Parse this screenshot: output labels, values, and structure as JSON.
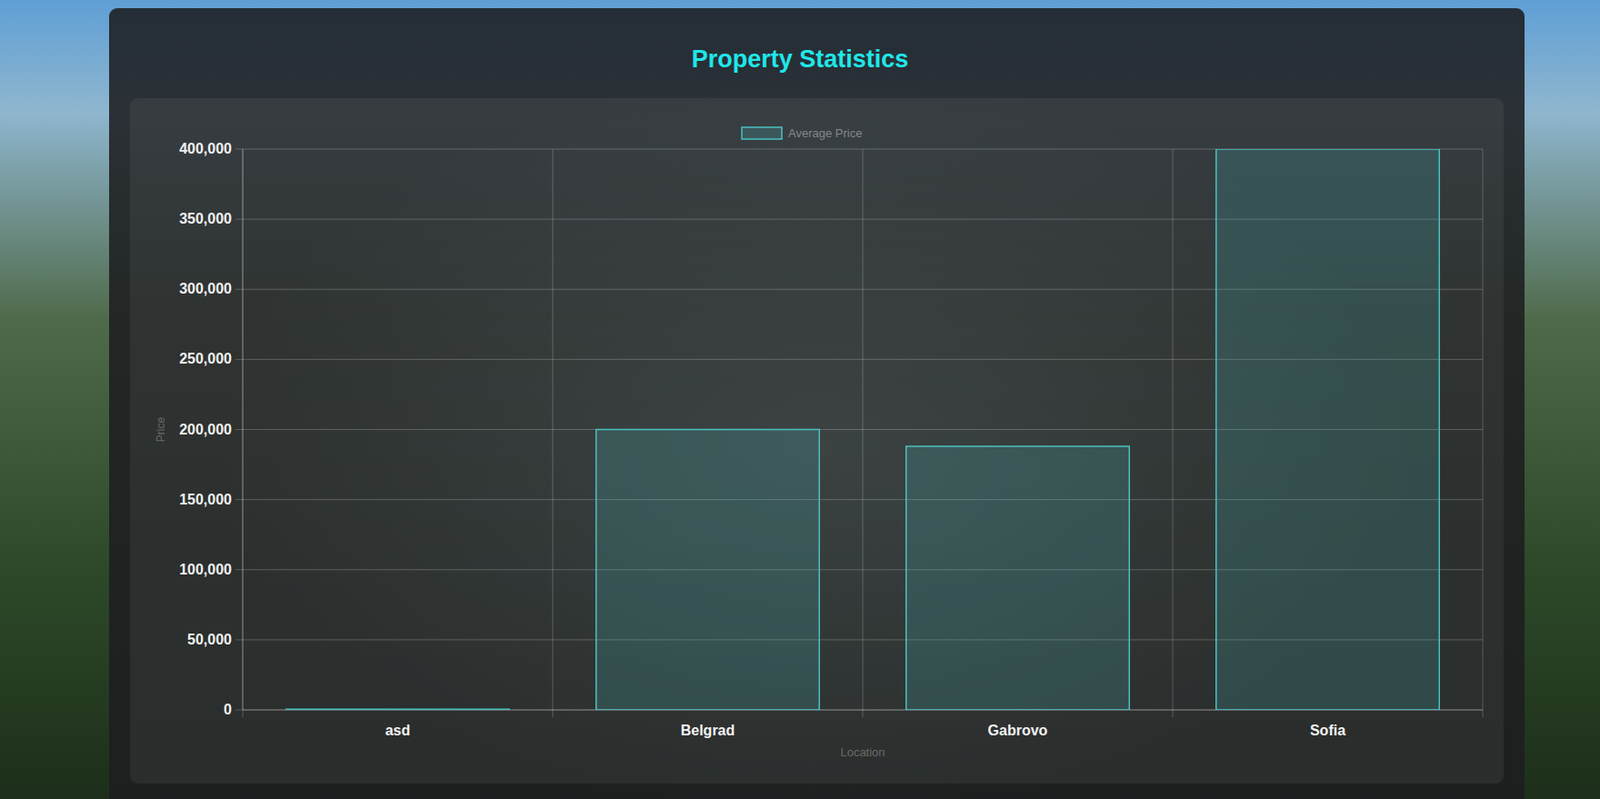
{
  "chart_data": {
    "type": "bar",
    "title": "Property Statistics",
    "x_label": "Location",
    "y_label": "Price",
    "categories": [
      "asd",
      "Belgrad",
      "Gabrovo",
      "Sofia"
    ],
    "series": [
      {
        "name": "Average Price",
        "color": "#4bc0c0",
        "values": [
          500,
          200000,
          188000,
          400000
        ]
      }
    ],
    "ylim": [
      0,
      400000
    ],
    "yticks": [
      0,
      {
        "value": 50000,
        "label": "50,000"
      },
      {
        "value": 100000,
        "label": "100,000"
      },
      {
        "value": 150000,
        "label": "150,000"
      },
      {
        "value": 200000,
        "label": "200,000"
      },
      {
        "value": 250000,
        "label": "250,000"
      },
      {
        "value": 300000,
        "label": "300,000"
      },
      {
        "value": 350000,
        "label": "350,000"
      },
      {
        "value": 400000,
        "label": "400,000"
      }
    ],
    "grid": true,
    "legend": "top"
  }
}
